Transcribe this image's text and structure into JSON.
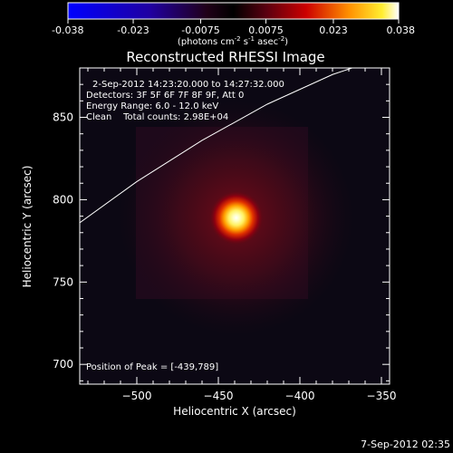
{
  "colorbar": {
    "ticks": [
      "-0.038",
      "-0.023",
      "-0.0075",
      "0.0075",
      "0.023",
      "0.038"
    ],
    "range": [
      -0.038,
      0.038
    ],
    "units_prefix": "(photons cm",
    "units_exp1": "-2",
    "units_mid": " s",
    "units_exp2": "-1",
    "units_mid2": " asec",
    "units_exp3": "-2",
    "units_suffix": ")"
  },
  "chart_data": {
    "type": "heatmap",
    "title": "Reconstructed RHESSI Image",
    "xlabel": "Heliocentric X (arcsec)",
    "ylabel": "Heliocentric Y (arcsec)",
    "xlim": [
      -535,
      -345
    ],
    "ylim": [
      688,
      880
    ],
    "xticks": [
      -500,
      -450,
      -400,
      -350
    ],
    "yticks": [
      700,
      750,
      800,
      850
    ],
    "annotations": [
      "2-Sep-2012 14:23:20.000 to 14:27:32.000",
      "Detectors: 3F 5F 6F 7F 8F 9F, Att 0",
      "Energy Range: 6.0 - 12.0 keV",
      "Clean    Total counts: 2.98E+04"
    ],
    "peak_label": "Position of Peak = [-439,789]",
    "peak": {
      "x": -439,
      "y": 789
    },
    "limb_curve": [
      [
        -535,
        786
      ],
      [
        -500,
        811
      ],
      [
        -460,
        836
      ],
      [
        -420,
        858
      ],
      [
        -380,
        876
      ],
      [
        -368,
        880
      ]
    ]
  },
  "footer": {
    "date": "7-Sep-2012 02:35"
  }
}
